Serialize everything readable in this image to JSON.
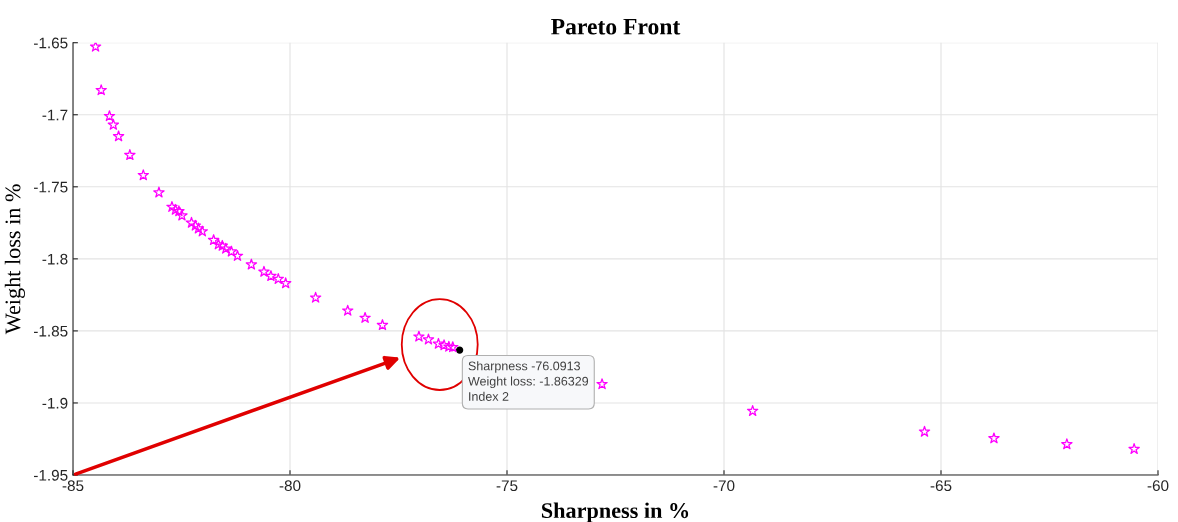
{
  "chart_data": {
    "type": "scatter",
    "title": "Pareto Front",
    "xlabel": "Sharpness in %",
    "ylabel": "Weight loss in %",
    "xlim": [
      -85,
      -60
    ],
    "xticks": [
      -85,
      -80,
      -75,
      -70,
      -65,
      -60
    ],
    "ylim": [
      -1.95,
      -1.65
    ],
    "yticks": [
      -1.95,
      -1.9,
      -1.85,
      -1.8,
      -1.75,
      -1.7,
      -1.65
    ],
    "grid": true,
    "marker": "star",
    "series": [
      {
        "color": "#ff00ff",
        "x": [
          -84.48,
          -84.35,
          -84.16,
          -84.07,
          -83.95,
          -83.69,
          -83.38,
          -83.02,
          -82.72,
          -82.64,
          -82.56,
          -82.49,
          -82.27,
          -82.18,
          -82.11,
          -82.02,
          -81.76,
          -81.65,
          -81.56,
          -81.48,
          -81.35,
          -81.21,
          -80.89,
          -80.6,
          -80.44,
          -80.27,
          -80.1,
          -79.41,
          -78.67,
          -78.27,
          -77.87,
          -77.03,
          -76.81,
          -76.58,
          -76.45,
          -76.34,
          -76.25,
          -72.81,
          -69.34,
          -65.38,
          -63.78,
          -62.1,
          -60.55
        ],
        "values": [
          -1.6528,
          -1.683,
          -1.701,
          -1.707,
          -1.715,
          -1.728,
          -1.742,
          -1.754,
          -1.764,
          -1.766,
          -1.767,
          -1.77,
          -1.775,
          -1.777,
          -1.779,
          -1.781,
          -1.787,
          -1.79,
          -1.791,
          -1.793,
          -1.795,
          -1.798,
          -1.804,
          -1.809,
          -1.812,
          -1.814,
          -1.817,
          -1.827,
          -1.836,
          -1.841,
          -1.846,
          -1.854,
          -1.856,
          -1.859,
          -1.86,
          -1.861,
          -1.8613,
          -1.887,
          -1.9056,
          -1.92,
          -1.9246,
          -1.9287,
          -1.932
        ]
      },
      {
        "color": "#000000",
        "marker": "circle",
        "x": [
          -76.0913
        ],
        "values": [
          -1.86329
        ]
      }
    ],
    "annotations": [
      {
        "text": "Sharpness -76.0913\nWeight loss: -1.86329\nIndex 2",
        "x": -76.0913,
        "y": -1.86329
      }
    ]
  }
}
